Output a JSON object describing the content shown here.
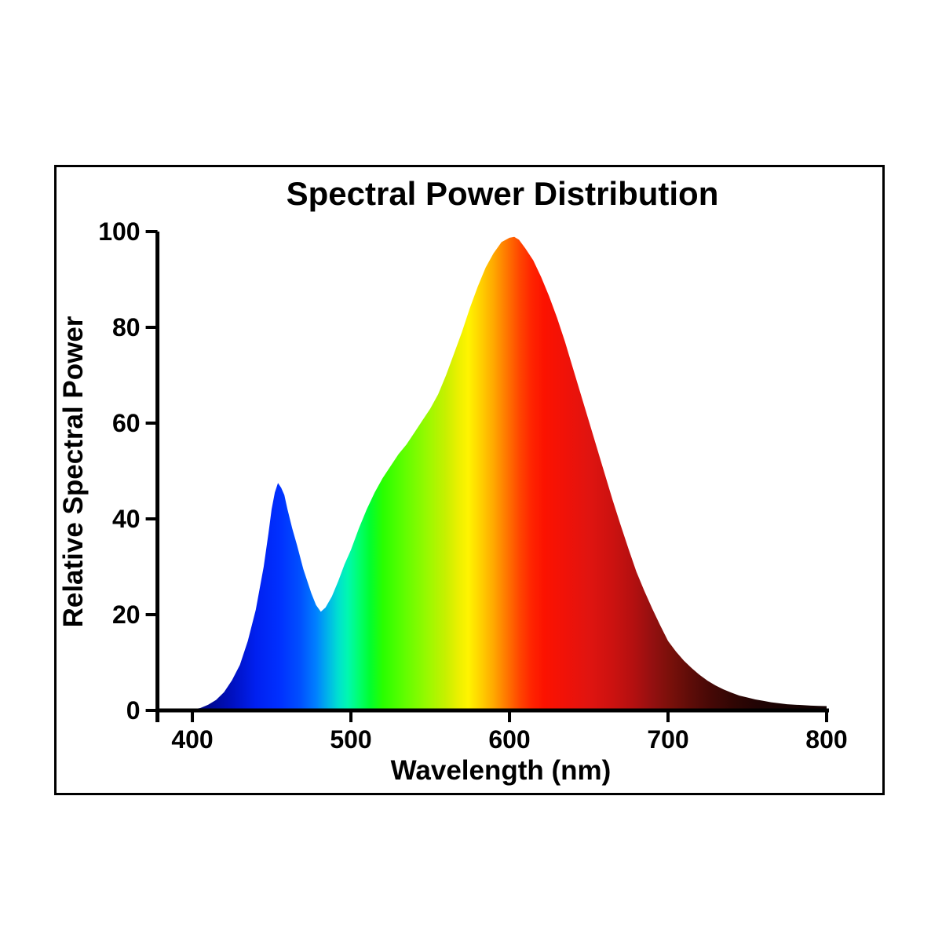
{
  "chart_data": {
    "type": "area",
    "title": "Spectral Power Distribution",
    "xlabel": "Wavelength (nm)",
    "ylabel": "Relative Spectral Power",
    "xlim": [
      378,
      800
    ],
    "ylim": [
      0,
      100
    ],
    "x_ticks": [
      400,
      500,
      600,
      700,
      800
    ],
    "y_ticks": [
      0,
      20,
      40,
      60,
      80,
      100
    ],
    "grid": false,
    "legend": "none",
    "axis_color": "#000000",
    "background_color": "#ffffff",
    "series_name": "relative-spectral-power",
    "notes": "white LED spectrum: blue peak ~47.5 at 454 nm, dip ~20.5 at 481 nm, main phosphor peak ~99 at 602 nm",
    "points": [
      [
        392,
        0
      ],
      [
        400,
        0.2
      ],
      [
        405,
        0.5
      ],
      [
        410,
        1.2
      ],
      [
        415,
        2.2
      ],
      [
        420,
        3.8
      ],
      [
        425,
        6.3
      ],
      [
        430,
        9.5
      ],
      [
        435,
        14.5
      ],
      [
        440,
        21
      ],
      [
        445,
        30
      ],
      [
        448,
        37
      ],
      [
        450,
        42
      ],
      [
        452,
        45.5
      ],
      [
        454,
        47.5
      ],
      [
        456,
        46.5
      ],
      [
        458,
        45
      ],
      [
        460,
        42
      ],
      [
        463,
        38
      ],
      [
        466,
        34.5
      ],
      [
        470,
        29.5
      ],
      [
        475,
        24.5
      ],
      [
        478,
        22
      ],
      [
        481,
        20.6
      ],
      [
        484,
        21.5
      ],
      [
        488,
        23.8
      ],
      [
        492,
        27
      ],
      [
        496,
        30.5
      ],
      [
        500,
        33.5
      ],
      [
        505,
        38
      ],
      [
        510,
        42
      ],
      [
        515,
        45.5
      ],
      [
        520,
        48.5
      ],
      [
        525,
        51
      ],
      [
        530,
        53.5
      ],
      [
        535,
        55.5
      ],
      [
        540,
        58
      ],
      [
        545,
        60.5
      ],
      [
        550,
        63
      ],
      [
        555,
        66
      ],
      [
        560,
        70
      ],
      [
        565,
        74.5
      ],
      [
        570,
        79
      ],
      [
        575,
        84
      ],
      [
        580,
        88.5
      ],
      [
        585,
        92.5
      ],
      [
        590,
        95.5
      ],
      [
        595,
        97.8
      ],
      [
        600,
        98.7
      ],
      [
        603,
        98.9
      ],
      [
        606,
        98.3
      ],
      [
        610,
        96.5
      ],
      [
        615,
        94
      ],
      [
        620,
        90.5
      ],
      [
        625,
        86.5
      ],
      [
        630,
        82
      ],
      [
        635,
        77
      ],
      [
        640,
        71.5
      ],
      [
        645,
        66
      ],
      [
        650,
        60.5
      ],
      [
        655,
        55
      ],
      [
        660,
        49.5
      ],
      [
        665,
        44
      ],
      [
        670,
        38.8
      ],
      [
        675,
        33.8
      ],
      [
        680,
        29
      ],
      [
        685,
        25
      ],
      [
        690,
        21.3
      ],
      [
        695,
        17.8
      ],
      [
        700,
        14.5
      ],
      [
        705,
        12.3
      ],
      [
        710,
        10.4
      ],
      [
        715,
        8.8
      ],
      [
        720,
        7.4
      ],
      [
        725,
        6.2
      ],
      [
        730,
        5.2
      ],
      [
        735,
        4.4
      ],
      [
        740,
        3.7
      ],
      [
        745,
        3.1
      ],
      [
        750,
        2.7
      ],
      [
        755,
        2.3
      ],
      [
        760,
        2
      ],
      [
        765,
        1.7
      ],
      [
        770,
        1.5
      ],
      [
        775,
        1.3
      ],
      [
        780,
        1.2
      ],
      [
        785,
        1.1
      ],
      [
        790,
        1
      ],
      [
        795,
        0.95
      ],
      [
        800,
        0.9
      ]
    ],
    "fill_gradient": [
      {
        "nm": 378,
        "color": "#000080"
      },
      {
        "nm": 410,
        "color": "#000890"
      },
      {
        "nm": 425,
        "color": "#0010c0"
      },
      {
        "nm": 440,
        "color": "#0020f0"
      },
      {
        "nm": 455,
        "color": "#0030ff"
      },
      {
        "nm": 468,
        "color": "#0050ff"
      },
      {
        "nm": 478,
        "color": "#0080ff"
      },
      {
        "nm": 486,
        "color": "#00b8e8"
      },
      {
        "nm": 492,
        "color": "#00e0d0"
      },
      {
        "nm": 498,
        "color": "#00f8b0"
      },
      {
        "nm": 505,
        "color": "#00ff70"
      },
      {
        "nm": 512,
        "color": "#00ff30"
      },
      {
        "nm": 520,
        "color": "#28ff00"
      },
      {
        "nm": 530,
        "color": "#50ff00"
      },
      {
        "nm": 540,
        "color": "#78fc00"
      },
      {
        "nm": 550,
        "color": "#a0f800"
      },
      {
        "nm": 560,
        "color": "#c8f000"
      },
      {
        "nm": 568,
        "color": "#ecf000"
      },
      {
        "nm": 574,
        "color": "#fff400"
      },
      {
        "nm": 582,
        "color": "#ffd000"
      },
      {
        "nm": 590,
        "color": "#ffa800"
      },
      {
        "nm": 598,
        "color": "#ff7800"
      },
      {
        "nm": 606,
        "color": "#ff4800"
      },
      {
        "nm": 614,
        "color": "#ff2400"
      },
      {
        "nm": 622,
        "color": "#fc1200"
      },
      {
        "nm": 635,
        "color": "#f01208"
      },
      {
        "nm": 650,
        "color": "#e01410"
      },
      {
        "nm": 665,
        "color": "#cc1210"
      },
      {
        "nm": 678,
        "color": "#b41010"
      },
      {
        "nm": 690,
        "color": "#941010"
      },
      {
        "nm": 702,
        "color": "#78100a"
      },
      {
        "nm": 715,
        "color": "#5c0c08"
      },
      {
        "nm": 728,
        "color": "#440806"
      },
      {
        "nm": 742,
        "color": "#300604"
      },
      {
        "nm": 756,
        "color": "#220404"
      },
      {
        "nm": 770,
        "color": "#1a0303"
      },
      {
        "nm": 800,
        "color": "#120202"
      }
    ]
  }
}
